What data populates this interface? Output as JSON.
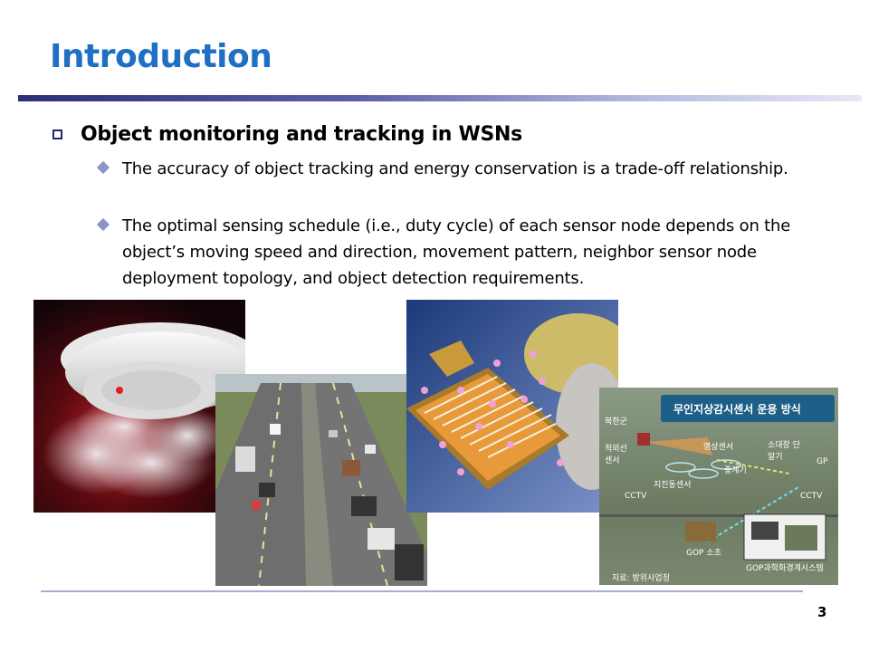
{
  "slide": {
    "title": "Introduction",
    "page_number": "3"
  },
  "content": {
    "main_bullet": "Object monitoring and tracking in WSNs",
    "sub_bullets": [
      "The accuracy of object tracking and energy conservation is a trade-off relationship.",
      "The optimal sensing schedule (i.e., duty cycle) of each sensor node depends on the object’s moving speed and direction, movement pattern, neighbor sensor node deployment topology, and object detection requirements."
    ]
  },
  "images": {
    "smoke_detector": {
      "icon": "smoke-detector"
    },
    "highway": {
      "icon": "highway-traffic"
    },
    "sensor_chip": {
      "icon": "sensor-chip"
    },
    "surveillance": {
      "banner": "무인지상감시센서 운용 방식",
      "labels": [
        "북한군",
        "적외선 센서",
        "영상센서",
        "소대장 단말기",
        "GP",
        "지진동센서",
        "중계기",
        "CCTV",
        "CCTV",
        "GOP 소초",
        "GOP과학화경계시스템",
        "자료: 방위사업청"
      ]
    }
  }
}
